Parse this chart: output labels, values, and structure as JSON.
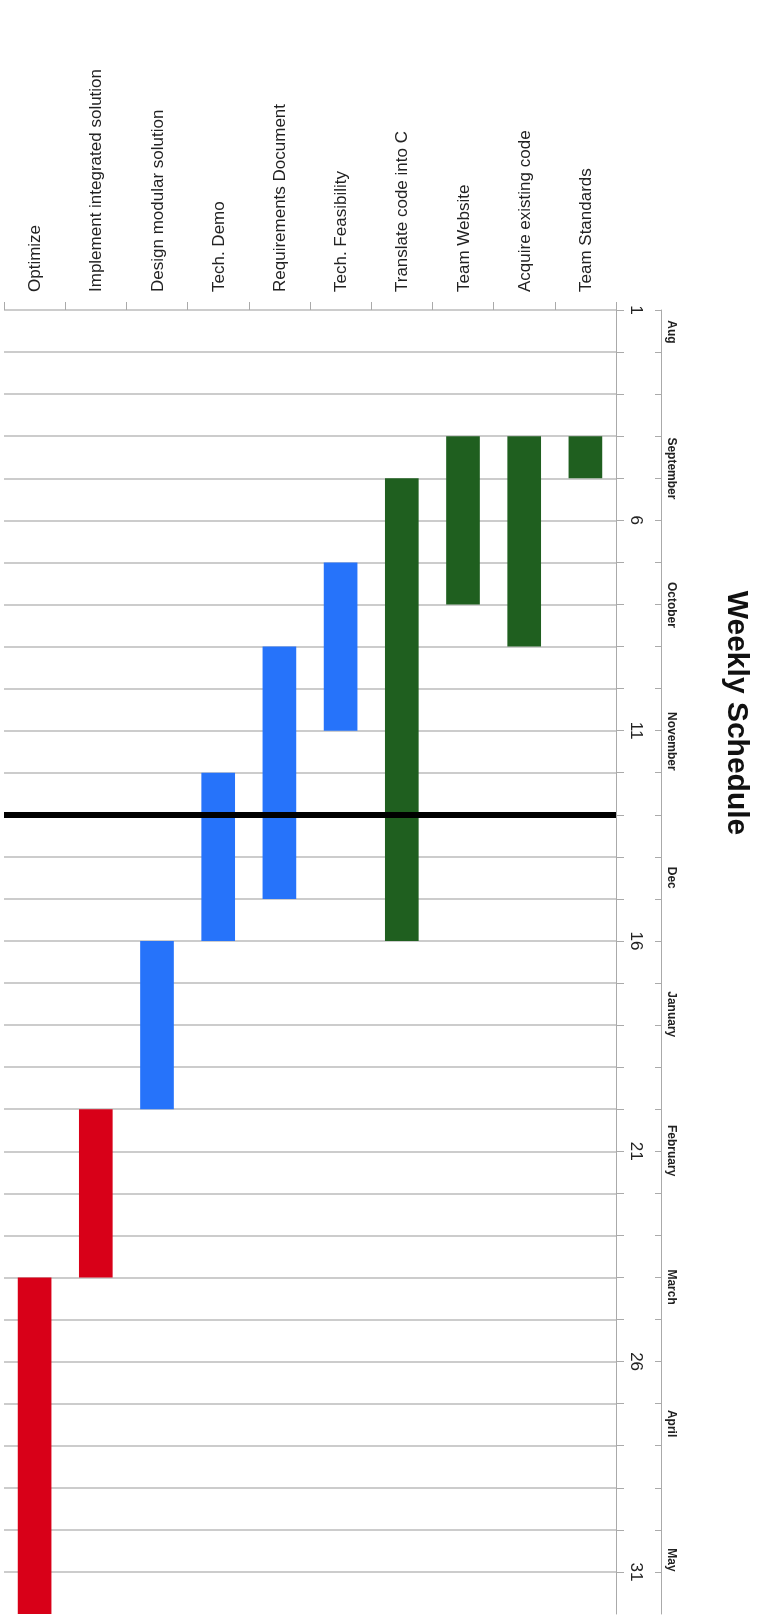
{
  "chart_data": {
    "type": "bar",
    "title": "Weekly Schedule",
    "categories": [
      "Optimize",
      "Implement integrated solution",
      "Design modular solution",
      "Tech. Demo",
      "Requirements Document",
      "Tech. Feasibility",
      "Translate code into C",
      "Team Website",
      "Acquire existing code",
      "Team Standards"
    ],
    "base": [
      24,
      20,
      16,
      12,
      9,
      7,
      5,
      4,
      4,
      4
    ],
    "values": [
      8,
      4,
      4,
      4,
      6,
      4,
      11,
      4,
      5,
      1
    ],
    "colors": [
      "#d80018",
      "#d80018",
      "#2673fa",
      "#2673fa",
      "#2673fa",
      "#2673fa",
      "#1f5f1f",
      "#1f5f1f",
      "#1f5f1f",
      "#1f5f1f"
    ],
    "ylim": [
      32,
      1
    ],
    "yticks": [
      1,
      {
        "value": 2,
        "label": null
      },
      {
        "value": 3,
        "label": null
      },
      {
        "value": 4,
        "label": null
      },
      {
        "value": 5,
        "label": null
      },
      6,
      {
        "value": 7,
        "label": null
      },
      {
        "value": 8,
        "label": null
      },
      {
        "value": 9,
        "label": null
      },
      {
        "value": 10,
        "label": null
      },
      11,
      {
        "value": 12,
        "label": null
      },
      {
        "value": 13,
        "label": null
      },
      {
        "value": 14,
        "label": null
      },
      {
        "value": 15,
        "label": null
      },
      16,
      {
        "value": 17,
        "label": null
      },
      {
        "value": 18,
        "label": null
      },
      {
        "value": 19,
        "label": null
      },
      {
        "value": 20,
        "label": null
      },
      21,
      {
        "value": 22,
        "label": null
      },
      {
        "value": 23,
        "label": null
      },
      {
        "value": 24,
        "label": null
      },
      {
        "value": 25,
        "label": null
      },
      26,
      {
        "value": 27,
        "label": null
      },
      {
        "value": 28,
        "label": null
      },
      {
        "value": 29,
        "label": null
      },
      {
        "value": 30,
        "label": null
      },
      31
    ],
    "annotations": [
      "Aug",
      "September",
      "October",
      "November",
      "Dec",
      "January",
      "February",
      "March",
      "April",
      "May"
    ],
    "ref_lines": [
      {
        "axis": "y",
        "value": 13,
        "color": "#000000"
      }
    ],
    "grid": "y"
  }
}
